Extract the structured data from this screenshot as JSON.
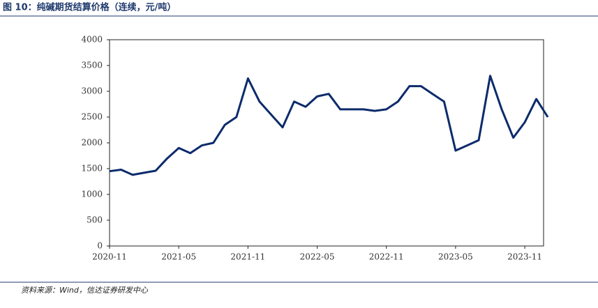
{
  "title": "图 10：纯碱期货结算价格（连续，元/吨）",
  "source": "资料来源：Wind，信达证券研发中心",
  "chart_data": {
    "type": "line",
    "x": [
      "2020-11",
      "2020-12",
      "2021-01",
      "2021-02",
      "2021-03",
      "2021-04",
      "2021-05",
      "2021-06",
      "2021-07",
      "2021-08",
      "2021-09",
      "2021-10",
      "2021-11",
      "2021-12",
      "2022-01",
      "2022-02",
      "2022-03",
      "2022-04",
      "2022-05",
      "2022-06",
      "2022-07",
      "2022-08",
      "2022-09",
      "2022-10",
      "2022-11",
      "2022-12",
      "2023-01",
      "2023-02",
      "2023-03",
      "2023-04",
      "2023-05",
      "2023-06",
      "2023-07",
      "2023-08",
      "2023-09",
      "2023-10",
      "2023-11",
      "2023-12",
      "2024-01"
    ],
    "series": [
      {
        "name": "纯碱期货结算价格",
        "color": "#0c2b6b",
        "values": [
          1450,
          1480,
          1380,
          1420,
          1460,
          1700,
          1900,
          1800,
          1950,
          2000,
          2350,
          2500,
          3250,
          2800,
          2550,
          2300,
          2800,
          2700,
          2900,
          2950,
          2650,
          2650,
          2650,
          2620,
          2650,
          2800,
          3100,
          3100,
          2950,
          2800,
          1850,
          1950,
          2050,
          3300,
          2650,
          2100,
          2400,
          2850,
          2500
        ]
      }
    ],
    "xticks": [
      "2020-11",
      "2021-05",
      "2021-11",
      "2022-05",
      "2022-11",
      "2023-05",
      "2023-11"
    ],
    "ylim": [
      0,
      4000
    ],
    "yticks": [
      0,
      500,
      1000,
      1500,
      2000,
      2500,
      3000,
      3500,
      4000
    ]
  }
}
